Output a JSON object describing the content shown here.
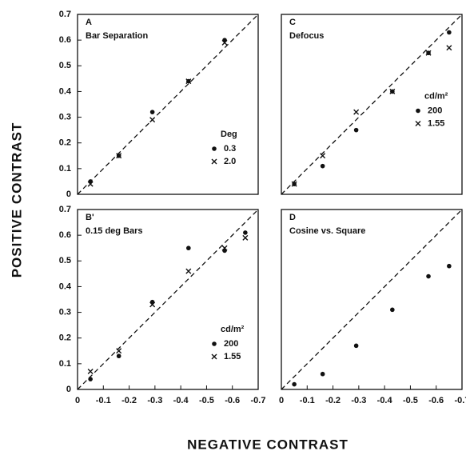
{
  "ylabel": "POSITIVE  CONTRAST",
  "xlabel": "NEGATIVE  CONTRAST",
  "chart_data": [
    {
      "type": "scatter",
      "label": "A",
      "title": "Bar Separation",
      "xlim": [
        0,
        -0.7
      ],
      "ylim": [
        0,
        0.7
      ],
      "yticks": [
        0,
        0.1,
        0.2,
        0.3,
        0.4,
        0.5,
        0.6,
        0.7
      ],
      "legend_title": "Deg",
      "legend": "lower right",
      "series": [
        {
          "name": "0.3",
          "marker": "dot",
          "x": [
            -0.05,
            -0.16,
            -0.29,
            -0.43,
            -0.57
          ],
          "values": [
            0.05,
            0.15,
            0.32,
            0.44,
            0.6
          ]
        },
        {
          "name": "2.0",
          "marker": "x",
          "x": [
            -0.05,
            -0.16,
            -0.29,
            -0.43,
            -0.57
          ],
          "values": [
            0.04,
            0.15,
            0.29,
            0.44,
            0.59
          ]
        }
      ]
    },
    {
      "type": "scatter",
      "label": "C",
      "title": "Defocus",
      "xlim": [
        0,
        -0.7
      ],
      "ylim": [
        0,
        0.7
      ],
      "legend_title": "cd/m²",
      "legend": "center right",
      "series": [
        {
          "name": "200",
          "marker": "dot",
          "x": [
            -0.05,
            -0.16,
            -0.29,
            -0.43,
            -0.57,
            -0.65
          ],
          "values": [
            0.04,
            0.11,
            0.25,
            0.4,
            0.55,
            0.63
          ]
        },
        {
          "name": "1.55",
          "marker": "x",
          "x": [
            -0.05,
            -0.16,
            -0.29,
            -0.43,
            -0.57,
            -0.65
          ],
          "values": [
            0.04,
            0.15,
            0.32,
            0.4,
            0.55,
            0.57
          ]
        }
      ]
    },
    {
      "type": "scatter",
      "label": "B'",
      "title": "0.15 deg Bars",
      "xlim": [
        0,
        -0.7
      ],
      "ylim": [
        0,
        0.7
      ],
      "xticks": [
        0,
        -0.1,
        -0.2,
        -0.3,
        -0.4,
        -0.5,
        -0.6,
        -0.7
      ],
      "yticks": [
        0,
        0.1,
        0.2,
        0.3,
        0.4,
        0.5,
        0.6,
        0.7
      ],
      "legend_title": "cd/m²",
      "legend": "lower right",
      "series": [
        {
          "name": "200",
          "marker": "dot",
          "x": [
            -0.05,
            -0.16,
            -0.29,
            -0.43,
            -0.57,
            -0.65
          ],
          "values": [
            0.04,
            0.13,
            0.34,
            0.55,
            0.54,
            0.61
          ]
        },
        {
          "name": "1.55",
          "marker": "x",
          "x": [
            -0.05,
            -0.16,
            -0.29,
            -0.43,
            -0.57,
            -0.65
          ],
          "values": [
            0.07,
            0.15,
            0.33,
            0.46,
            0.55,
            0.59
          ]
        }
      ]
    },
    {
      "type": "scatter",
      "label": "D",
      "title": "Cosine vs. Square",
      "xlim": [
        0,
        -0.7
      ],
      "ylim": [
        0,
        0.7
      ],
      "xticks": [
        0,
        -0.1,
        -0.2,
        -0.3,
        -0.4,
        -0.5,
        -0.6,
        -0.7
      ],
      "series": [
        {
          "marker": "dot",
          "x": [
            -0.05,
            -0.16,
            -0.29,
            -0.43,
            -0.57,
            -0.65
          ],
          "values": [
            0.02,
            0.06,
            0.17,
            0.31,
            0.44,
            0.48
          ]
        }
      ]
    }
  ]
}
